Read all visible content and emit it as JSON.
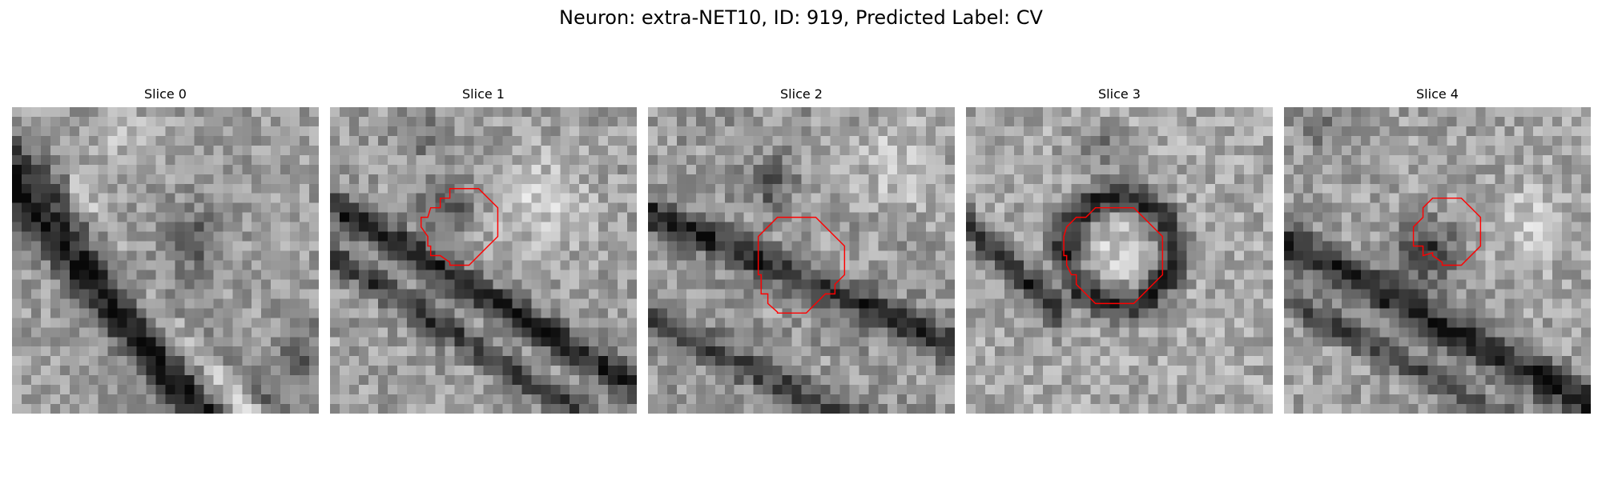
{
  "title": "Neuron: extra-NET10, ID: 919, Predicted Label: CV",
  "colors": {
    "background": "#ffffff",
    "outline": "#ff0000",
    "colormap": "grayscale"
  },
  "slices": [
    {
      "label": "Slice 0",
      "has_outline": false
    },
    {
      "label": "Slice 1",
      "has_outline": true
    },
    {
      "label": "Slice 2",
      "has_outline": true
    },
    {
      "label": "Slice 3",
      "has_outline": true
    },
    {
      "label": "Slice 4",
      "has_outline": true
    }
  ]
}
